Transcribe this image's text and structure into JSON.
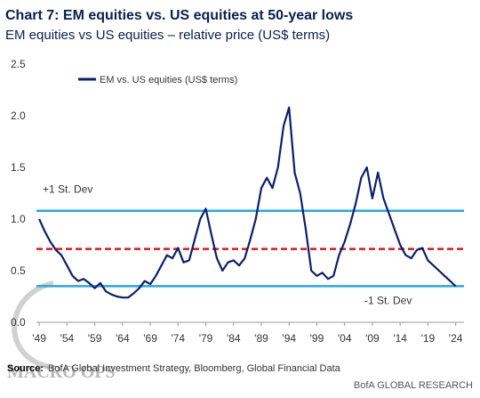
{
  "chart_data": {
    "type": "line",
    "title": "Chart 7: EM equities vs. US equities at 50-year lows",
    "subtitle": "EM equities vs US equities – relative price (US$ terms)",
    "x": [
      1949,
      1950,
      1951,
      1952,
      1953,
      1954,
      1955,
      1956,
      1957,
      1958,
      1959,
      1960,
      1961,
      1962,
      1963,
      1964,
      1965,
      1966,
      1967,
      1968,
      1969,
      1970,
      1971,
      1972,
      1973,
      1974,
      1975,
      1976,
      1977,
      1978,
      1979,
      1980,
      1981,
      1982,
      1983,
      1984,
      1985,
      1986,
      1987,
      1988,
      1989,
      1990,
      1991,
      1992,
      1993,
      1994,
      1995,
      1996,
      1997,
      1998,
      1999,
      2000,
      2001,
      2002,
      2003,
      2004,
      2005,
      2006,
      2007,
      2008,
      2009,
      2010,
      2011,
      2012,
      2013,
      2014,
      2015,
      2016,
      2017,
      2018,
      2019,
      2020,
      2021,
      2022,
      2023,
      2024
    ],
    "series": [
      {
        "name": "EM vs. US equities (US$ terms)",
        "color": "#0b1f6b",
        "values": [
          1.0,
          0.88,
          0.78,
          0.7,
          0.65,
          0.55,
          0.45,
          0.4,
          0.42,
          0.38,
          0.33,
          0.38,
          0.3,
          0.27,
          0.25,
          0.24,
          0.24,
          0.28,
          0.33,
          0.4,
          0.37,
          0.45,
          0.55,
          0.65,
          0.62,
          0.72,
          0.58,
          0.6,
          0.8,
          1.0,
          1.1,
          0.85,
          0.62,
          0.5,
          0.58,
          0.6,
          0.55,
          0.62,
          0.8,
          1.0,
          1.3,
          1.4,
          1.3,
          1.5,
          1.9,
          2.08,
          1.45,
          1.25,
          0.9,
          0.5,
          0.45,
          0.48,
          0.42,
          0.45,
          0.65,
          0.78,
          0.95,
          1.15,
          1.4,
          1.5,
          1.2,
          1.45,
          1.2,
          1.05,
          0.9,
          0.75,
          0.65,
          0.62,
          0.7,
          0.72,
          0.6,
          0.55,
          0.5,
          0.45,
          0.4,
          0.35
        ]
      }
    ],
    "reference_lines": [
      {
        "label": "+1 St. Dev",
        "value": 1.08,
        "color": "#29a8e0"
      },
      {
        "value": 0.71,
        "color": "#d71920"
      },
      {
        "label": "-1 St. Dev",
        "value": 0.35,
        "color": "#29a8e0"
      }
    ],
    "xlim": [
      1948.5,
      2025.5
    ],
    "xticks": [
      {
        "value": 1949,
        "label": "'49"
      },
      {
        "value": 1954,
        "label": "'54"
      },
      {
        "value": 1959,
        "label": "'59"
      },
      {
        "value": 1964,
        "label": "'64"
      },
      {
        "value": 1969,
        "label": "'69"
      },
      {
        "value": 1974,
        "label": "'74"
      },
      {
        "value": 1979,
        "label": "'79"
      },
      {
        "value": 1984,
        "label": "'84"
      },
      {
        "value": 1989,
        "label": "'89"
      },
      {
        "value": 1994,
        "label": "'94"
      },
      {
        "value": 1999,
        "label": "'99"
      },
      {
        "value": 2004,
        "label": "'04"
      },
      {
        "value": 2009,
        "label": "'09"
      },
      {
        "value": 2014,
        "label": "'14"
      },
      {
        "value": 2019,
        "label": "'19"
      },
      {
        "value": 2024,
        "label": "'24"
      }
    ],
    "ylim": [
      0,
      2.5
    ],
    "yticks": [
      {
        "value": 0,
        "label": "0.0"
      },
      0.5,
      {
        "value": 1,
        "label": "1.0"
      },
      1.5,
      {
        "value": 2,
        "label": "2.0"
      },
      2.5
    ],
    "source_label": "Source:",
    "source": "BofA Global Investment Strategy, Bloomberg, Global Financial Data",
    "brand": "BofA GLOBAL RESEARCH",
    "watermark": "MACRO OPS"
  }
}
